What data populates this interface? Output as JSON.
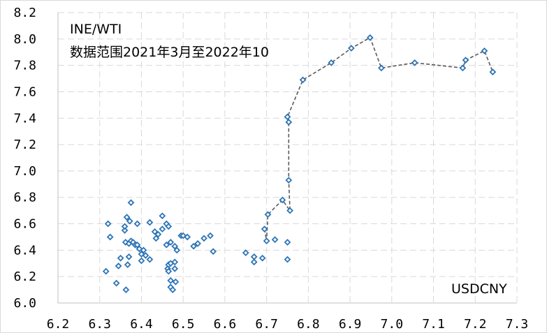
{
  "chart_data": {
    "type": "scatter",
    "title": "INE/WTI",
    "subtitle": "数据范围2021年3月至2022年10",
    "xlabel": "",
    "ylabel": "",
    "corner_label": "USDCNY",
    "xlim": [
      6.2,
      7.3
    ],
    "ylim": [
      6.0,
      8.2
    ],
    "x_ticks": [
      "6.2",
      "6.3",
      "6.4",
      "6.5",
      "6.6",
      "6.7",
      "6.8",
      "6.9",
      "7.0",
      "7.1",
      "7.2",
      "7.3"
    ],
    "y_ticks": [
      "6.0",
      "6.2",
      "6.4",
      "6.6",
      "6.8",
      "7.0",
      "7.2",
      "7.4",
      "7.6",
      "7.8",
      "8.0",
      "8.2"
    ],
    "grid": true,
    "marker_color": "#2e75b6",
    "line_color": "#595959",
    "scatter_points": [
      [
        6.315,
        6.24
      ],
      [
        6.32,
        6.6
      ],
      [
        6.325,
        6.5
      ],
      [
        6.34,
        6.15
      ],
      [
        6.345,
        6.28
      ],
      [
        6.35,
        6.34
      ],
      [
        6.36,
        6.55
      ],
      [
        6.36,
        6.58
      ],
      [
        6.362,
        6.46
      ],
      [
        6.365,
        6.65
      ],
      [
        6.363,
        6.1
      ],
      [
        6.367,
        6.29
      ],
      [
        6.37,
        6.35
      ],
      [
        6.372,
        6.62
      ],
      [
        6.37,
        6.45
      ],
      [
        6.375,
        6.47
      ],
      [
        6.375,
        6.76
      ],
      [
        6.38,
        6.46
      ],
      [
        6.385,
        6.44
      ],
      [
        6.39,
        6.6
      ],
      [
        6.39,
        6.44
      ],
      [
        6.395,
        6.41
      ],
      [
        6.4,
        6.32
      ],
      [
        6.4,
        6.37
      ],
      [
        6.405,
        6.4
      ],
      [
        6.41,
        6.36
      ],
      [
        6.42,
        6.33
      ],
      [
        6.42,
        6.61
      ],
      [
        6.432,
        6.54
      ],
      [
        6.435,
        6.49
      ],
      [
        6.44,
        6.52
      ],
      [
        6.45,
        6.66
      ],
      [
        6.45,
        6.56
      ],
      [
        6.46,
        6.6
      ],
      [
        6.465,
        6.58
      ],
      [
        6.46,
        6.44
      ],
      [
        6.463,
        6.26
      ],
      [
        6.465,
        6.29
      ],
      [
        6.465,
        6.24
      ],
      [
        6.47,
        6.46
      ],
      [
        6.47,
        6.3
      ],
      [
        6.47,
        6.12
      ],
      [
        6.47,
        6.17
      ],
      [
        6.475,
        6.1
      ],
      [
        6.48,
        6.43
      ],
      [
        6.48,
        6.31
      ],
      [
        6.48,
        6.26
      ],
      [
        6.482,
        6.16
      ],
      [
        6.485,
        6.4
      ],
      [
        6.495,
        6.51
      ],
      [
        6.5,
        6.51
      ],
      [
        6.51,
        6.5
      ],
      [
        6.525,
        6.43
      ],
      [
        6.535,
        6.45
      ],
      [
        6.55,
        6.49
      ],
      [
        6.565,
        6.51
      ],
      [
        6.572,
        6.39
      ],
      [
        6.65,
        6.38
      ],
      [
        6.67,
        6.31
      ],
      [
        6.67,
        6.35
      ],
      [
        6.69,
        6.34
      ],
      [
        6.72,
        6.48
      ],
      [
        6.75,
        6.33
      ],
      [
        6.75,
        6.46
      ]
    ],
    "path_points": [
      [
        6.695,
        6.56
      ],
      [
        6.7,
        6.47
      ],
      [
        6.703,
        6.67
      ],
      [
        6.738,
        6.78
      ],
      [
        6.756,
        6.7
      ],
      [
        6.753,
        6.93
      ],
      [
        6.753,
        7.37
      ],
      [
        6.75,
        7.41
      ],
      [
        6.787,
        7.69
      ],
      [
        6.855,
        7.82
      ],
      [
        6.903,
        7.93
      ],
      [
        6.948,
        8.01
      ],
      [
        6.975,
        7.78
      ],
      [
        7.055,
        7.82
      ],
      [
        7.17,
        7.78
      ],
      [
        7.177,
        7.84
      ],
      [
        7.222,
        7.91
      ],
      [
        7.242,
        7.75
      ]
    ]
  }
}
